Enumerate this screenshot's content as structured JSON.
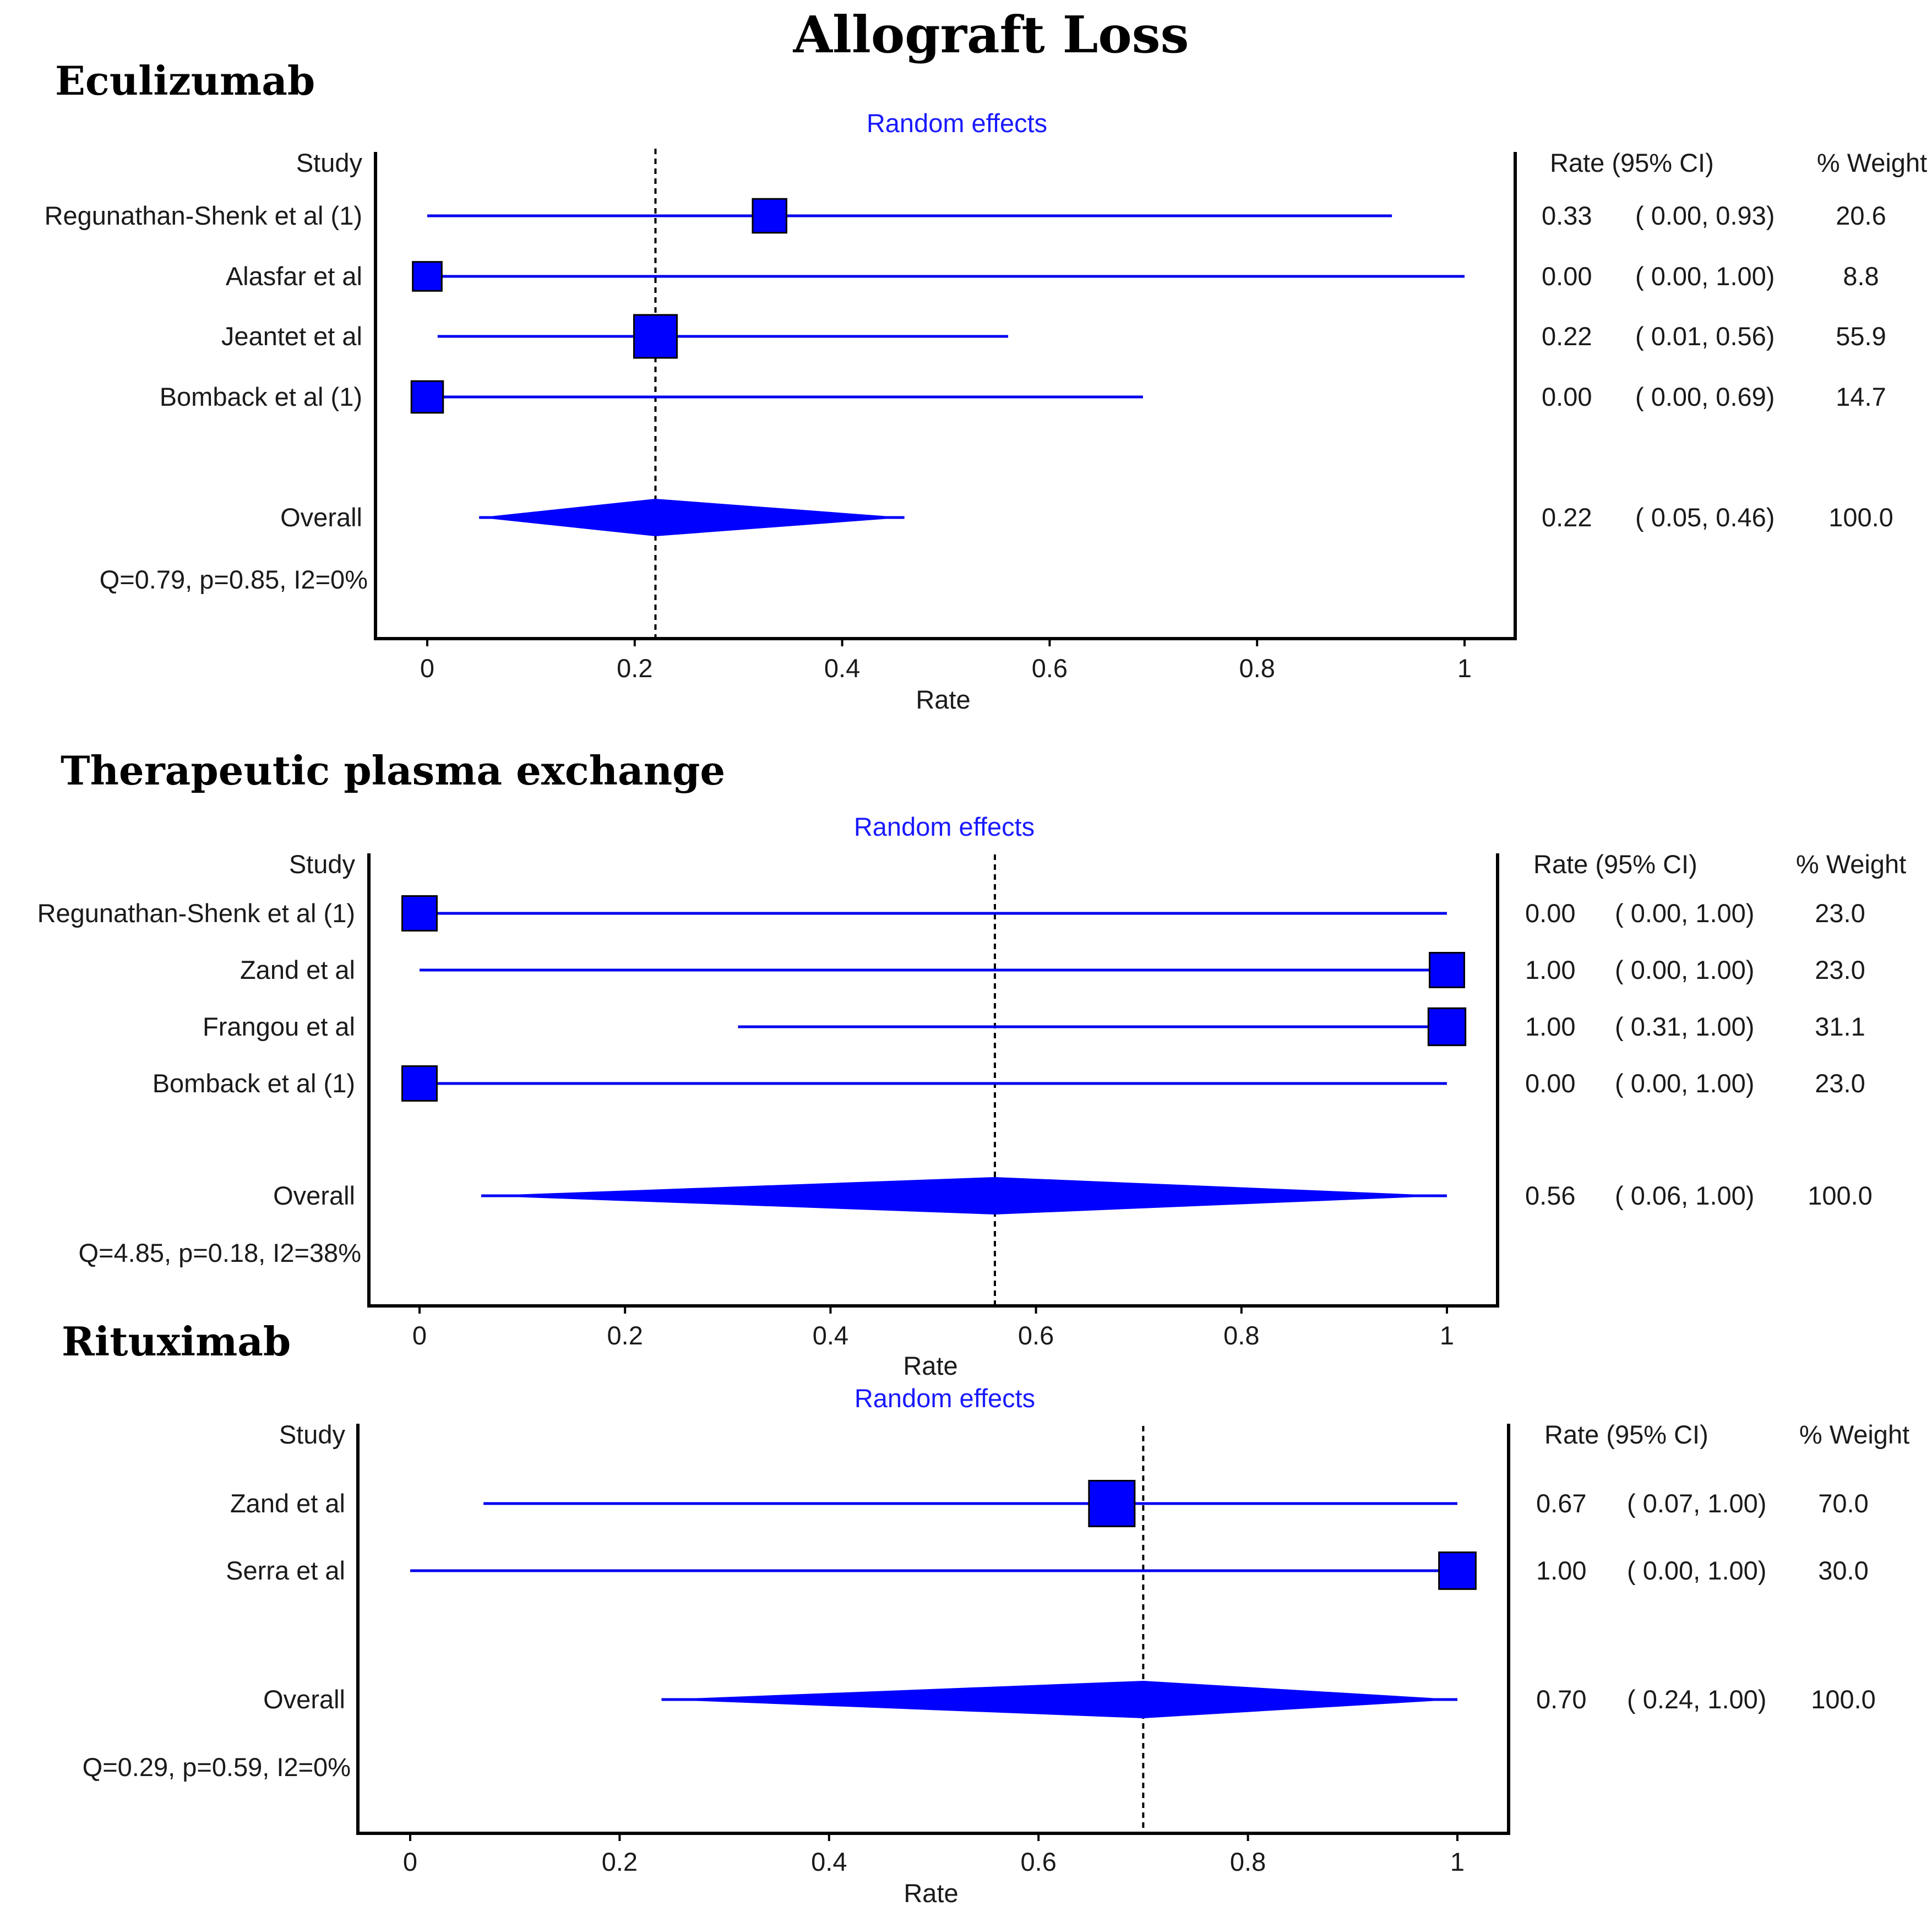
{
  "title": "Allograft Loss",
  "colors": {
    "marker": "#0000ff",
    "ci_line": "#0000ee",
    "random_effects_label": "#1a1aff"
  },
  "chart_data": [
    {
      "type": "forest",
      "section_title": "Eculizumab",
      "model_label": "Random effects",
      "study_header": "Study",
      "ci_header": "Rate (95% CI)",
      "weight_header": "% Weight",
      "xlabel": "Rate",
      "xlim": [
        0,
        1
      ],
      "xticks": [
        "0",
        "0.2",
        "0.4",
        "0.6",
        "0.8",
        "1"
      ],
      "reference_line": 0.22,
      "studies": [
        {
          "name": "Regunathan-Shenk et al (1)",
          "rate": 0.33,
          "lo": 0.0,
          "hi": 0.93,
          "weight": 20.6,
          "rate_text": "0.33",
          "ci_text": "( 0.00,  0.93)",
          "weight_text": "20.6"
        },
        {
          "name": "Alasfar et al",
          "rate": 0.0,
          "lo": 0.0,
          "hi": 1.0,
          "weight": 8.8,
          "rate_text": "0.00",
          "ci_text": "( 0.00,  1.00)",
          "weight_text": "8.8"
        },
        {
          "name": "Jeantet et al",
          "rate": 0.22,
          "lo": 0.01,
          "hi": 0.56,
          "weight": 55.9,
          "rate_text": "0.22",
          "ci_text": "( 0.01,  0.56)",
          "weight_text": "55.9"
        },
        {
          "name": "Bomback et al (1)",
          "rate": 0.0,
          "lo": 0.0,
          "hi": 0.69,
          "weight": 14.7,
          "rate_text": "0.00",
          "ci_text": "( 0.00,  0.69)",
          "weight_text": "14.7"
        }
      ],
      "overall": {
        "name": "Overall",
        "rate": 0.22,
        "lo": 0.05,
        "hi": 0.46,
        "rate_text": "0.22",
        "ci_text": "( 0.05,  0.46)",
        "weight_text": "100.0"
      },
      "heterogeneity": "Q=0.79, p=0.85, I2=0%"
    },
    {
      "type": "forest",
      "section_title": "Therapeutic plasma exchange",
      "model_label": "Random effects",
      "study_header": "Study",
      "ci_header": "Rate (95% CI)",
      "weight_header": "% Weight",
      "xlabel": "Rate",
      "xlim": [
        0,
        1
      ],
      "xticks": [
        "0",
        "0.2",
        "0.4",
        "0.6",
        "0.8",
        "1"
      ],
      "reference_line": 0.56,
      "studies": [
        {
          "name": "Regunathan-Shenk et al (1)",
          "rate": 0.0,
          "lo": 0.0,
          "hi": 1.0,
          "weight": 23.0,
          "rate_text": "0.00",
          "ci_text": "( 0.00,  1.00)",
          "weight_text": "23.0"
        },
        {
          "name": "Zand et al",
          "rate": 1.0,
          "lo": 0.0,
          "hi": 1.0,
          "weight": 23.0,
          "rate_text": "1.00",
          "ci_text": "( 0.00,  1.00)",
          "weight_text": "23.0"
        },
        {
          "name": "Frangou et al",
          "rate": 1.0,
          "lo": 0.31,
          "hi": 1.0,
          "weight": 31.1,
          "rate_text": "1.00",
          "ci_text": "( 0.31,  1.00)",
          "weight_text": "31.1"
        },
        {
          "name": "Bomback et al (1)",
          "rate": 0.0,
          "lo": 0.0,
          "hi": 1.0,
          "weight": 23.0,
          "rate_text": "0.00",
          "ci_text": "( 0.00,  1.00)",
          "weight_text": "23.0"
        }
      ],
      "overall": {
        "name": "Overall",
        "rate": 0.56,
        "lo": 0.06,
        "hi": 1.0,
        "rate_text": "0.56",
        "ci_text": "( 0.06,  1.00)",
        "weight_text": "100.0"
      },
      "heterogeneity": "Q=4.85, p=0.18, I2=38%"
    },
    {
      "type": "forest",
      "section_title": "Rituximab",
      "model_label": "Random effects",
      "study_header": "Study",
      "ci_header": "Rate (95% CI)",
      "weight_header": "% Weight",
      "xlabel": "Rate",
      "xlim": [
        0,
        1
      ],
      "xticks": [
        "0",
        "0.2",
        "0.4",
        "0.6",
        "0.8",
        "1"
      ],
      "reference_line": 0.7,
      "studies": [
        {
          "name": "Zand et al",
          "rate": 0.67,
          "lo": 0.07,
          "hi": 1.0,
          "weight": 70.0,
          "rate_text": "0.67",
          "ci_text": "( 0.07,  1.00)",
          "weight_text": "70.0"
        },
        {
          "name": "Serra et al",
          "rate": 1.0,
          "lo": 0.0,
          "hi": 1.0,
          "weight": 30.0,
          "rate_text": "1.00",
          "ci_text": "( 0.00,  1.00)",
          "weight_text": "30.0"
        }
      ],
      "overall": {
        "name": "Overall",
        "rate": 0.7,
        "lo": 0.24,
        "hi": 1.0,
        "rate_text": "0.70",
        "ci_text": "( 0.24,  1.00)",
        "weight_text": "100.0"
      },
      "heterogeneity": "Q=0.29, p=0.59, I2=0%"
    }
  ]
}
